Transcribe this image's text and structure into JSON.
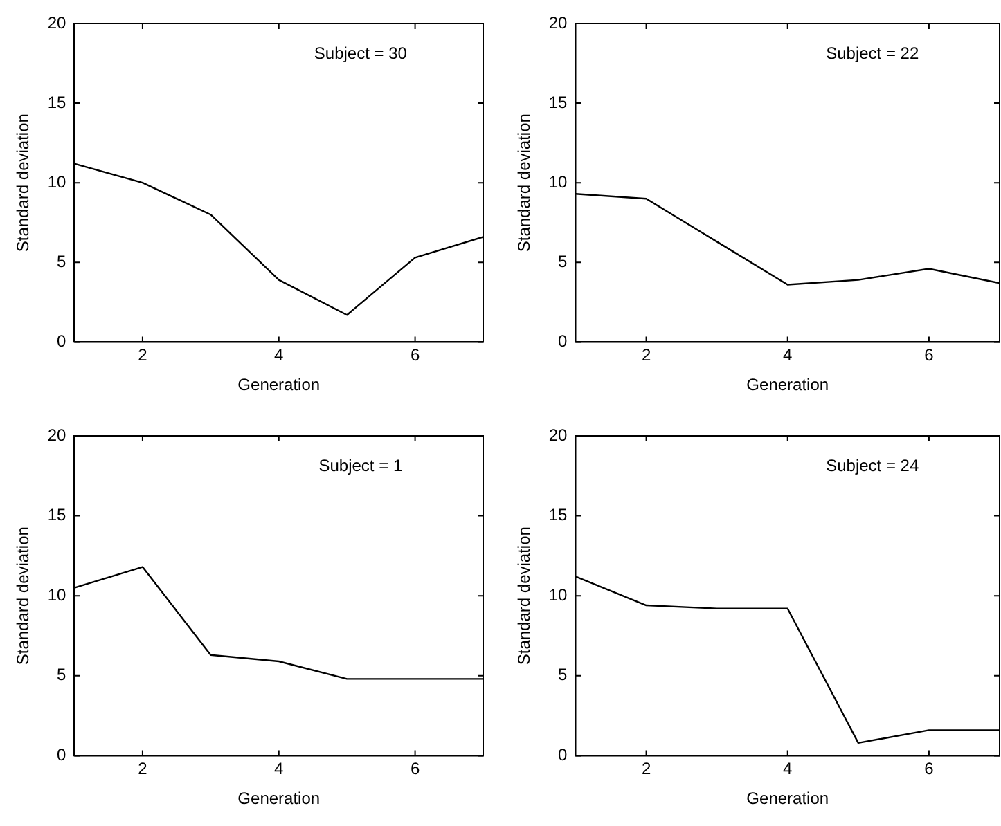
{
  "chart_data": [
    {
      "type": "line",
      "x": [
        1,
        2,
        3,
        4,
        5,
        6,
        7
      ],
      "xlim": [
        1,
        7
      ],
      "xticks": [
        2,
        4,
        6
      ],
      "ylim": [
        0,
        20
      ],
      "yticks": [
        0,
        5,
        10,
        15,
        20
      ],
      "xlabel": "Generation",
      "ylabel": "Standard deviation",
      "annotations": [
        "Subject = 30"
      ],
      "grid": false,
      "marker": "none",
      "line_style": "solid",
      "series": [
        {
          "color": "#000000",
          "values": [
            11.2,
            10,
            8,
            3.9,
            1.7,
            5.3,
            6.6
          ]
        }
      ]
    },
    {
      "type": "line",
      "x": [
        1,
        2,
        3,
        4,
        5,
        6,
        7
      ],
      "xlim": [
        1,
        7
      ],
      "xticks": [
        2,
        4,
        6
      ],
      "ylim": [
        0,
        20
      ],
      "yticks": [
        0,
        5,
        10,
        15,
        20
      ],
      "xlabel": "Generation",
      "ylabel": "Standard deviation",
      "annotations": [
        "Subject = 22"
      ],
      "grid": false,
      "marker": "none",
      "line_style": "solid",
      "series": [
        {
          "color": "#000000",
          "values": [
            9.3,
            9,
            6.3,
            3.6,
            3.9,
            4.6,
            3.7
          ]
        }
      ]
    },
    {
      "type": "line",
      "x": [
        1,
        2,
        3,
        4,
        5,
        6,
        7
      ],
      "xlim": [
        1,
        7
      ],
      "xticks": [
        2,
        4,
        6
      ],
      "ylim": [
        0,
        20
      ],
      "yticks": [
        0,
        5,
        10,
        15,
        20
      ],
      "xlabel": "Generation",
      "ylabel": "Standard deviation",
      "annotations": [
        "Subject = 1"
      ],
      "grid": false,
      "marker": "none",
      "line_style": "solid",
      "series": [
        {
          "color": "#000000",
          "values": [
            10.5,
            11.8,
            6.3,
            5.9,
            4.8,
            4.8,
            4.8
          ]
        }
      ]
    },
    {
      "type": "line",
      "x": [
        1,
        2,
        3,
        4,
        5,
        6,
        7
      ],
      "xlim": [
        1,
        7
      ],
      "xticks": [
        2,
        4,
        6
      ],
      "ylim": [
        0,
        20
      ],
      "yticks": [
        0,
        5,
        10,
        15,
        20
      ],
      "xlabel": "Generation",
      "ylabel": "Standard deviation",
      "annotations": [
        "Subject = 24"
      ],
      "grid": false,
      "marker": "none",
      "line_style": "solid",
      "series": [
        {
          "color": "#000000",
          "values": [
            11.2,
            9.4,
            9.2,
            9.2,
            0.8,
            1.6,
            1.6
          ]
        }
      ]
    }
  ]
}
